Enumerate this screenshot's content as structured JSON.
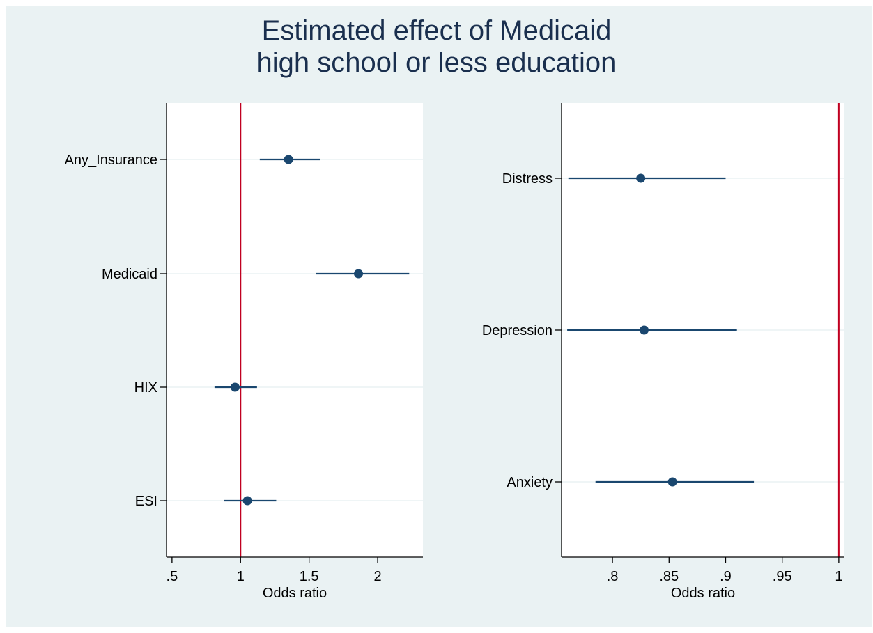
{
  "title_lines": [
    "Estimated effect of Medicaid",
    "high school or less education"
  ],
  "colors": {
    "background": "#eaf2f3",
    "plot_background": "#ffffff",
    "marker": "#1a476f",
    "reference_line": "#c00020",
    "title": "#1a2f4e"
  },
  "chart_data": [
    {
      "type": "scatter",
      "subtype": "coefficient-plot",
      "xlabel": "Odds ratio",
      "xlim": [
        0.46,
        2.33
      ],
      "xticks": [
        0.5,
        1,
        1.5,
        2
      ],
      "xtick_labels": [
        ".5",
        "1",
        "1.5",
        "2"
      ],
      "reference_line": 1,
      "grid": "horizontal",
      "items": [
        {
          "label": "Any_Insurance",
          "estimate": 1.35,
          "ci": [
            1.14,
            1.58
          ]
        },
        {
          "label": "Medicaid",
          "estimate": 1.86,
          "ci": [
            1.55,
            2.23
          ]
        },
        {
          "label": "HIX",
          "estimate": 0.96,
          "ci": [
            0.81,
            1.12
          ]
        },
        {
          "label": "ESI",
          "estimate": 1.05,
          "ci": [
            0.88,
            1.26
          ]
        }
      ]
    },
    {
      "type": "scatter",
      "subtype": "coefficient-plot",
      "xlabel": "Odds ratio",
      "xlim": [
        0.755,
        1.005
      ],
      "xticks": [
        0.8,
        0.85,
        0.9,
        0.95,
        1
      ],
      "xtick_labels": [
        ".8",
        ".85",
        ".9",
        ".95",
        "1"
      ],
      "reference_line": 1,
      "grid": "horizontal",
      "items": [
        {
          "label": "Distress",
          "estimate": 0.825,
          "ci": [
            0.761,
            0.9
          ]
        },
        {
          "label": "Depression",
          "estimate": 0.828,
          "ci": [
            0.76,
            0.91
          ]
        },
        {
          "label": "Anxiety",
          "estimate": 0.853,
          "ci": [
            0.785,
            0.925
          ]
        }
      ]
    }
  ]
}
